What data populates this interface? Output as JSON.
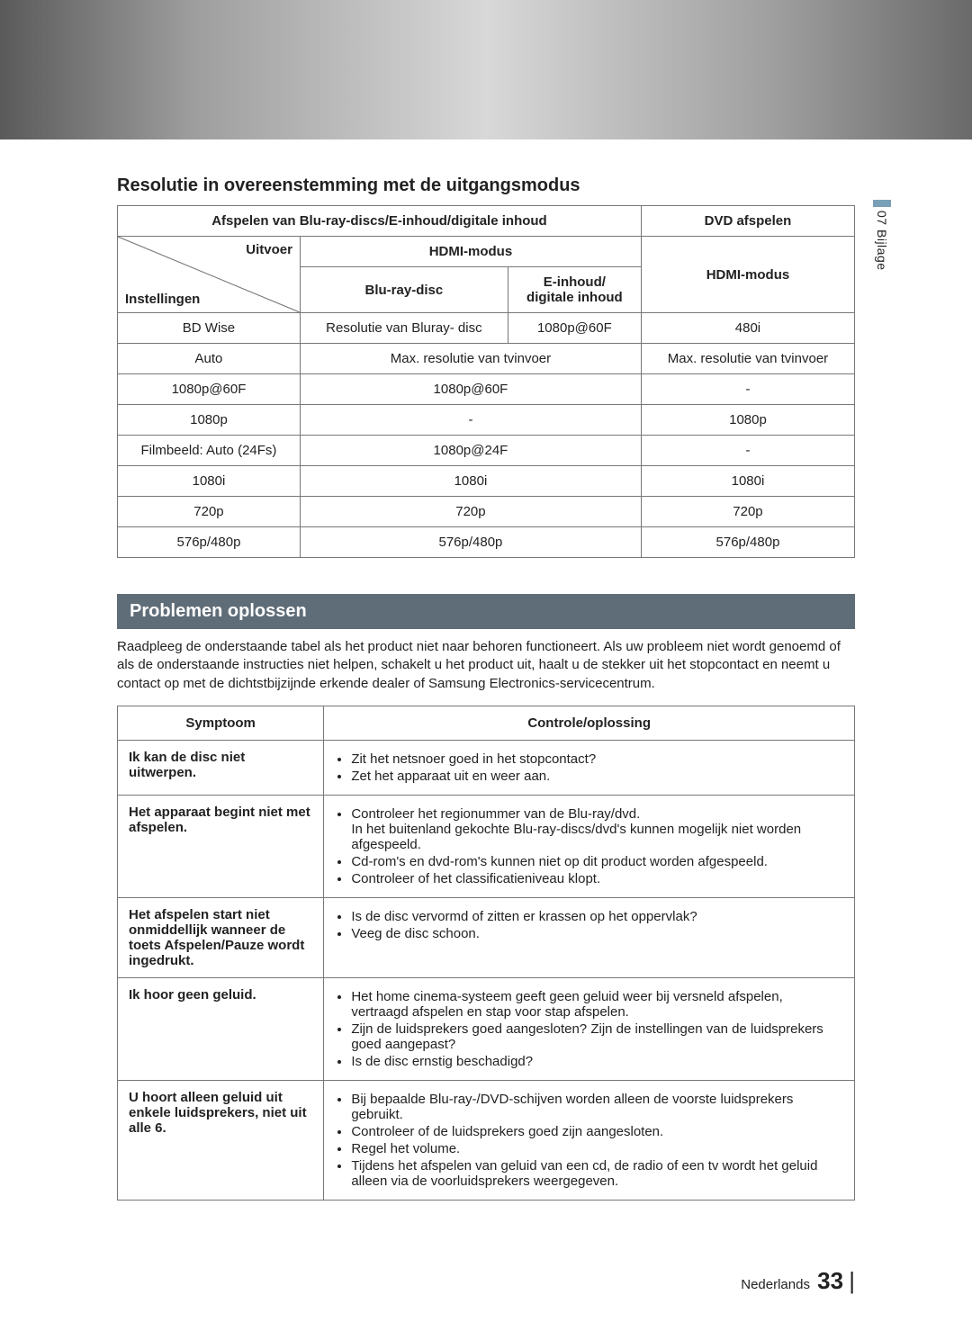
{
  "side_tab": {
    "num": "07",
    "label": "Bijlage"
  },
  "section1_title": "Resolutie in overeenstemming met de uitgangsmodus",
  "res_table": {
    "head": {
      "group_bluray": "Afspelen van Blu-ray-discs/E-inhoud/digitale inhoud",
      "group_dvd": "DVD afspelen",
      "hdmi_mode": "HDMI-modus",
      "diag_top": "Uitvoer",
      "diag_bot": "Instellingen",
      "col_bluray": "Blu-ray-disc",
      "col_einhoud": "E-inhoud/\ndigitale inhoud",
      "hdmi_mode2": "HDMI-modus"
    },
    "rows": [
      {
        "a": "BD Wise",
        "b": "Resolutie van Bluray- disc",
        "c": "1080p@60F",
        "d": "480i"
      },
      {
        "a": "Auto",
        "bc": "Max. resolutie van tvinvoer",
        "d": "Max. resolutie van tvinvoer"
      },
      {
        "a": "1080p@60F",
        "bc": "1080p@60F",
        "d": "-"
      },
      {
        "a": "1080p",
        "bc": "-",
        "d": "1080p"
      },
      {
        "a": "Filmbeeld: Auto (24Fs)",
        "bc": "1080p@24F",
        "d": "-"
      },
      {
        "a": "1080i",
        "bc": "1080i",
        "d": "1080i"
      },
      {
        "a": "720p",
        "bc": "720p",
        "d": "720p"
      },
      {
        "a": "576p/480p",
        "bc": "576p/480p",
        "d": "576p/480p"
      }
    ]
  },
  "ts": {
    "heading": "Problemen oplossen",
    "intro": "Raadpleeg de onderstaande tabel als het product niet naar behoren functioneert. Als uw probleem niet wordt genoemd of als de onderstaande instructies niet helpen, schakelt u het product uit, haalt u de stekker uit het stopcontact en neemt u contact op met de dichtstbijzijnde erkende dealer of Samsung Electronics-servicecentrum.",
    "col_symptom": "Symptoom",
    "col_solution": "Controle/oplossing",
    "rows": [
      {
        "symptom": "Ik kan de disc niet uitwerpen.",
        "items": [
          "Zit het netsnoer goed in het stopcontact?",
          "Zet het apparaat uit en weer aan."
        ]
      },
      {
        "symptom": "Het apparaat begint niet met afspelen.",
        "items": [
          "Controleer het regionummer van de Blu-ray/dvd.\nIn het buitenland gekochte Blu-ray-discs/dvd's kunnen mogelijk niet worden afgespeeld.",
          "Cd-rom's en dvd-rom's kunnen niet op dit product worden afgespeeld.",
          "Controleer of het classificatieniveau klopt."
        ]
      },
      {
        "symptom": "Het afspelen start niet onmiddellijk wanneer de toets Afspelen/Pauze wordt ingedrukt.",
        "items": [
          "Is de disc vervormd of zitten er krassen op het oppervlak?",
          "Veeg de disc schoon."
        ]
      },
      {
        "symptom": "Ik hoor geen geluid.",
        "items": [
          "Het home cinema-systeem geeft geen geluid weer bij versneld afspelen, vertraagd afspelen en stap voor stap afspelen.",
          "Zijn de luidsprekers goed aangesloten? Zijn de instellingen van de luidsprekers goed aangepast?",
          "Is de disc ernstig beschadigd?"
        ]
      },
      {
        "symptom": "U hoort alleen geluid uit enkele luidsprekers, niet uit alle 6.",
        "items": [
          "Bij bepaalde Blu-ray-/DVD-schijven worden alleen de voorste luidsprekers gebruikt.",
          "Controleer of de luidsprekers goed zijn aangesloten.",
          "Regel het volume.",
          "Tijdens het afspelen van geluid van een cd, de radio of een tv wordt het geluid alleen via de voorluidsprekers weergegeven."
        ]
      }
    ]
  },
  "footer": {
    "lang": "Nederlands",
    "page": "33"
  }
}
